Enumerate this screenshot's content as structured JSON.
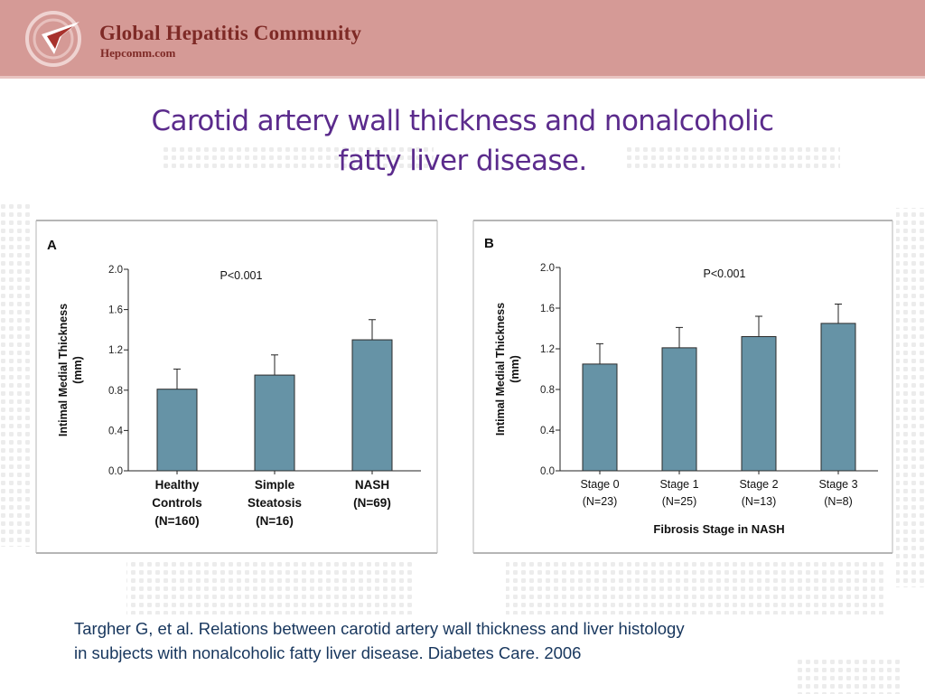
{
  "header": {
    "org_name": "Global Hepatitis Community",
    "org_site": "Hepcomm.com",
    "logo_icon": "hepcomm-logo-icon",
    "background_color": "#d59a96",
    "text_color": "#7e2a26"
  },
  "slide": {
    "title_line1": "Carotid artery wall thickness and nonalcoholic",
    "title_line2": "fatty liver disease.",
    "title_color": "#5b2b8c",
    "citation_line1": "Targher G, et al. Relations between carotid artery wall thickness and liver histology",
    "citation_line2": "in subjects with nonalcoholic fatty liver disease. Diabetes Care. 2006",
    "citation_color": "#17365d"
  },
  "chart_data": [
    {
      "type": "bar",
      "panel_label": "A",
      "annotation": "P<0.001",
      "ylabel": "Intimal Medial Thickness (mm)",
      "xlabel": "",
      "ylim": [
        0,
        2.0
      ],
      "yticks": [
        "0.0",
        "0.4",
        "0.8",
        "1.2",
        "1.6",
        "2.0"
      ],
      "categories": [
        [
          "Healthy",
          "Controls",
          "(N=160)"
        ],
        [
          "Simple",
          "Steatosis",
          "(N=16)"
        ],
        [
          "NASH",
          "(N=69)"
        ]
      ],
      "values": [
        0.81,
        0.95,
        1.3
      ],
      "error_upper": [
        1.01,
        1.15,
        1.5
      ],
      "bar_color": "#6693a6",
      "grid": false
    },
    {
      "type": "bar",
      "panel_label": "B",
      "annotation": "P<0.001",
      "ylabel": "Intimal Medial Thickness (mm)",
      "xlabel": "Fibrosis Stage in NASH",
      "ylim": [
        0,
        2.0
      ],
      "yticks": [
        "0.0",
        "0.4",
        "0.8",
        "1.2",
        "1.6",
        "2.0"
      ],
      "categories": [
        [
          "Stage 0",
          "(N=23)"
        ],
        [
          "Stage 1",
          "(N=25)"
        ],
        [
          "Stage 2",
          "(N=13)"
        ],
        [
          "Stage 3",
          "(N=8)"
        ]
      ],
      "values": [
        1.05,
        1.21,
        1.32,
        1.45
      ],
      "error_upper": [
        1.25,
        1.41,
        1.52,
        1.64
      ],
      "bar_color": "#6693a6",
      "grid": false
    }
  ]
}
